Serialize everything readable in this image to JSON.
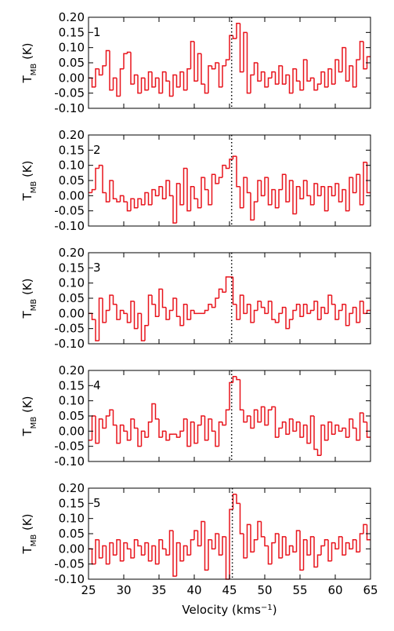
{
  "chart_data": [
    {
      "type": "step",
      "label": "1",
      "color": "#e8141c",
      "vline": 45.3,
      "ylabel": "T",
      "ylabel_sub": "MB",
      "ylabel_unit": " (K)",
      "xlim": [
        25,
        65
      ],
      "xticks": [
        25,
        30,
        35,
        40,
        45,
        50,
        55,
        60,
        65
      ],
      "ylim": [
        -0.1,
        0.2
      ],
      "yticks": [
        {
          "value": -0.1,
          "label": "-0.10"
        },
        {
          "value": -0.05,
          "label": "-0.05"
        },
        {
          "value": 0,
          "label": "0.00"
        },
        {
          "value": 0.05,
          "label": "0.05"
        },
        {
          "value": 0.1,
          "label": "0.10"
        },
        {
          "value": 0.15,
          "label": "0.15"
        },
        {
          "value": 0.2,
          "label": "0.20"
        }
      ],
      "x": [
        25.25,
        25.75,
        26.25,
        26.75,
        27.25,
        27.75,
        28.25,
        28.75,
        29.25,
        29.75,
        30.25,
        30.75,
        31.25,
        31.75,
        32.25,
        32.75,
        33.25,
        33.75,
        34.25,
        34.75,
        35.25,
        35.75,
        36.25,
        36.75,
        37.25,
        37.75,
        38.25,
        38.75,
        39.25,
        39.75,
        40.25,
        40.75,
        41.25,
        41.75,
        42.25,
        42.75,
        43.25,
        43.75,
        44.25,
        44.75,
        45.25,
        45.75,
        46.25,
        46.75,
        47.25,
        47.75,
        48.25,
        48.75,
        49.25,
        49.75,
        50.25,
        50.75,
        51.25,
        51.75,
        52.25,
        52.75,
        53.25,
        53.75,
        54.25,
        54.75,
        55.25,
        55.75,
        56.25,
        56.75,
        57.25,
        57.75,
        58.25,
        58.75,
        59.25,
        59.75,
        60.25,
        60.75,
        61.25,
        61.75,
        62.25,
        62.75,
        63.25,
        63.75,
        64.25,
        64.75
      ],
      "values": [
        0.0,
        -0.03,
        0.03,
        0.01,
        0.04,
        0.09,
        -0.04,
        0.0,
        -0.06,
        0.03,
        0.08,
        0.085,
        -0.02,
        0.01,
        -0.05,
        0.0,
        -0.04,
        0.02,
        -0.03,
        0.0,
        -0.05,
        0.02,
        -0.01,
        -0.06,
        0.01,
        -0.03,
        0.02,
        -0.04,
        0.03,
        0.12,
        -0.01,
        0.08,
        -0.02,
        -0.05,
        0.04,
        0.03,
        0.05,
        -0.03,
        0.04,
        0.06,
        0.14,
        0.13,
        0.18,
        0.02,
        0.15,
        -0.05,
        0.01,
        0.05,
        -0.01,
        0.02,
        -0.03,
        0.0,
        0.02,
        -0.02,
        0.04,
        -0.02,
        0.01,
        -0.05,
        0.03,
        -0.01,
        -0.04,
        0.06,
        -0.01,
        0.0,
        -0.04,
        -0.02,
        0.02,
        -0.03,
        0.03,
        -0.02,
        0.06,
        0.02,
        0.1,
        -0.01,
        0.04,
        -0.03,
        0.06,
        0.12,
        0.03,
        0.07
      ]
    },
    {
      "type": "step",
      "label": "2",
      "color": "#e8141c",
      "vline": 45.3,
      "ylabel": "T",
      "ylabel_sub": "MB",
      "ylabel_unit": " (K)",
      "xlim": [
        25,
        65
      ],
      "xticks": [
        25,
        30,
        35,
        40,
        45,
        50,
        55,
        60,
        65
      ],
      "ylim": [
        -0.1,
        0.2
      ],
      "yticks": [
        {
          "value": -0.1,
          "label": "-0.10"
        },
        {
          "value": -0.05,
          "label": "-0.05"
        },
        {
          "value": 0,
          "label": "0.00"
        },
        {
          "value": 0.05,
          "label": "0.05"
        },
        {
          "value": 0.1,
          "label": "0.10"
        },
        {
          "value": 0.15,
          "label": "0.15"
        },
        {
          "value": 0.2,
          "label": "0.20"
        }
      ],
      "x": [
        25.25,
        25.75,
        26.25,
        26.75,
        27.25,
        27.75,
        28.25,
        28.75,
        29.25,
        29.75,
        30.25,
        30.75,
        31.25,
        31.75,
        32.25,
        32.75,
        33.25,
        33.75,
        34.25,
        34.75,
        35.25,
        35.75,
        36.25,
        36.75,
        37.25,
        37.75,
        38.25,
        38.75,
        39.25,
        39.75,
        40.25,
        40.75,
        41.25,
        41.75,
        42.25,
        42.75,
        43.25,
        43.75,
        44.25,
        44.75,
        45.25,
        45.75,
        46.25,
        46.75,
        47.25,
        47.75,
        48.25,
        48.75,
        49.25,
        49.75,
        50.25,
        50.75,
        51.25,
        51.75,
        52.25,
        52.75,
        53.25,
        53.75,
        54.25,
        54.75,
        55.25,
        55.75,
        56.25,
        56.75,
        57.25,
        57.75,
        58.25,
        58.75,
        59.25,
        59.75,
        60.25,
        60.75,
        61.25,
        61.75,
        62.25,
        62.75,
        63.25,
        63.75,
        64.25,
        64.75
      ],
      "values": [
        0.01,
        0.02,
        0.09,
        0.1,
        0.01,
        -0.02,
        0.05,
        -0.01,
        -0.02,
        0.0,
        -0.02,
        -0.05,
        -0.01,
        -0.04,
        -0.01,
        -0.03,
        0.01,
        -0.03,
        0.02,
        0.0,
        0.03,
        -0.01,
        0.05,
        0.0,
        -0.09,
        0.04,
        -0.03,
        0.09,
        -0.05,
        0.03,
        -0.01,
        -0.04,
        0.06,
        0.02,
        -0.03,
        0.07,
        0.04,
        0.06,
        0.1,
        0.09,
        0.12,
        0.13,
        0.03,
        -0.04,
        0.06,
        0.01,
        -0.08,
        -0.02,
        0.05,
        0.0,
        0.06,
        -0.03,
        0.02,
        -0.04,
        0.02,
        0.07,
        -0.02,
        0.05,
        -0.06,
        0.03,
        -0.01,
        0.05,
        0.0,
        -0.03,
        0.04,
        0.0,
        0.03,
        -0.05,
        0.03,
        0.0,
        0.04,
        -0.02,
        0.02,
        -0.05,
        0.06,
        0.01,
        0.07,
        -0.03,
        0.11,
        0.01
      ]
    },
    {
      "type": "step",
      "label": "3",
      "color": "#e8141c",
      "vline": 45.3,
      "ylabel": "T",
      "ylabel_sub": "MB",
      "ylabel_unit": " (K)",
      "xlim": [
        25,
        65
      ],
      "xticks": [
        25,
        30,
        35,
        40,
        45,
        50,
        55,
        60,
        65
      ],
      "ylim": [
        -0.1,
        0.2
      ],
      "yticks": [
        {
          "value": -0.1,
          "label": "-0.10"
        },
        {
          "value": -0.05,
          "label": "-0.05"
        },
        {
          "value": 0,
          "label": "0.00"
        },
        {
          "value": 0.05,
          "label": "0.05"
        },
        {
          "value": 0.1,
          "label": "0.10"
        },
        {
          "value": 0.15,
          "label": "0.15"
        },
        {
          "value": 0.2,
          "label": "0.20"
        }
      ],
      "x": [
        25.25,
        25.75,
        26.25,
        26.75,
        27.25,
        27.75,
        28.25,
        28.75,
        29.25,
        29.75,
        30.25,
        30.75,
        31.25,
        31.75,
        32.25,
        32.75,
        33.25,
        33.75,
        34.25,
        34.75,
        35.25,
        35.75,
        36.25,
        36.75,
        37.25,
        37.75,
        38.25,
        38.75,
        39.25,
        39.75,
        40.25,
        40.75,
        41.25,
        41.75,
        42.25,
        42.75,
        43.25,
        43.75,
        44.25,
        44.75,
        45.25,
        45.75,
        46.25,
        46.75,
        47.25,
        47.75,
        48.25,
        48.75,
        49.25,
        49.75,
        50.25,
        50.75,
        51.25,
        51.75,
        52.25,
        52.75,
        53.25,
        53.75,
        54.25,
        54.75,
        55.25,
        55.75,
        56.25,
        56.75,
        57.25,
        57.75,
        58.25,
        58.75,
        59.25,
        59.75,
        60.25,
        60.75,
        61.25,
        61.75,
        62.25,
        62.75,
        63.25,
        63.75,
        64.25,
        64.75
      ],
      "values": [
        0.0,
        -0.02,
        -0.09,
        0.05,
        -0.03,
        0.01,
        0.06,
        0.03,
        -0.02,
        0.01,
        0.0,
        -0.03,
        0.04,
        -0.05,
        0.0,
        -0.09,
        -0.04,
        0.06,
        0.03,
        -0.01,
        0.08,
        0.02,
        -0.02,
        0.01,
        0.05,
        -0.01,
        -0.04,
        0.03,
        -0.02,
        0.01,
        0.0,
        0.0,
        0.0,
        0.01,
        0.03,
        0.02,
        0.05,
        0.08,
        0.07,
        0.12,
        0.12,
        0.03,
        -0.02,
        0.06,
        0.0,
        0.03,
        -0.03,
        0.01,
        0.04,
        0.02,
        0.0,
        0.04,
        -0.02,
        -0.03,
        0.0,
        0.02,
        -0.05,
        -0.02,
        0.01,
        0.03,
        -0.01,
        0.03,
        0.0,
        0.01,
        0.04,
        -0.02,
        0.02,
        0.0,
        0.06,
        0.03,
        -0.02,
        0.01,
        0.03,
        -0.04,
        0.0,
        0.02,
        -0.03,
        0.04,
        0.0,
        0.01
      ]
    },
    {
      "type": "step",
      "label": "4",
      "color": "#e8141c",
      "vline": 45.3,
      "ylabel": "T",
      "ylabel_sub": "MB",
      "ylabel_unit": " (K)",
      "xlim": [
        25,
        65
      ],
      "xticks": [
        25,
        30,
        35,
        40,
        45,
        50,
        55,
        60,
        65
      ],
      "ylim": [
        -0.1,
        0.2
      ],
      "yticks": [
        {
          "value": -0.1,
          "label": "-0.10"
        },
        {
          "value": -0.05,
          "label": "-0.05"
        },
        {
          "value": 0,
          "label": "0.00"
        },
        {
          "value": 0.05,
          "label": "0.05"
        },
        {
          "value": 0.1,
          "label": "0.10"
        },
        {
          "value": 0.15,
          "label": "0.15"
        },
        {
          "value": 0.2,
          "label": "0.20"
        }
      ],
      "x": [
        25.25,
        25.75,
        26.25,
        26.75,
        27.25,
        27.75,
        28.25,
        28.75,
        29.25,
        29.75,
        30.25,
        30.75,
        31.25,
        31.75,
        32.25,
        32.75,
        33.25,
        33.75,
        34.25,
        34.75,
        35.25,
        35.75,
        36.25,
        36.75,
        37.25,
        37.75,
        38.25,
        38.75,
        39.25,
        39.75,
        40.25,
        40.75,
        41.25,
        41.75,
        42.25,
        42.75,
        43.25,
        43.75,
        44.25,
        44.75,
        45.25,
        45.75,
        46.25,
        46.75,
        47.25,
        47.75,
        48.25,
        48.75,
        49.25,
        49.75,
        50.25,
        50.75,
        51.25,
        51.75,
        52.25,
        52.75,
        53.25,
        53.75,
        54.25,
        54.75,
        55.25,
        55.75,
        56.25,
        56.75,
        57.25,
        57.75,
        58.25,
        58.75,
        59.25,
        59.75,
        60.25,
        60.75,
        61.25,
        61.75,
        62.25,
        62.75,
        63.25,
        63.75,
        64.25,
        64.75
      ],
      "values": [
        -0.03,
        0.05,
        -0.04,
        0.04,
        0.01,
        0.05,
        0.07,
        0.02,
        -0.04,
        0.02,
        0.0,
        -0.03,
        0.04,
        0.01,
        -0.05,
        0.0,
        -0.02,
        0.03,
        0.09,
        0.04,
        -0.02,
        0.0,
        -0.03,
        -0.01,
        -0.01,
        -0.02,
        0.0,
        0.04,
        -0.05,
        0.03,
        -0.04,
        0.02,
        0.05,
        -0.03,
        0.04,
        0.0,
        -0.05,
        0.03,
        0.02,
        0.07,
        0.16,
        0.18,
        0.17,
        0.07,
        0.03,
        0.05,
        0.01,
        0.07,
        0.03,
        0.08,
        0.02,
        0.07,
        0.08,
        -0.02,
        0.01,
        0.03,
        -0.01,
        0.04,
        0.0,
        0.03,
        -0.02,
        0.02,
        -0.04,
        0.05,
        -0.06,
        -0.08,
        0.02,
        -0.03,
        0.03,
        -0.01,
        0.02,
        0.0,
        0.01,
        -0.02,
        0.04,
        0.01,
        -0.03,
        0.06,
        0.03,
        -0.02
      ]
    },
    {
      "type": "step",
      "label": "5",
      "color": "#e8141c",
      "vline": 45.4,
      "ylabel": "T",
      "ylabel_sub": "MB",
      "ylabel_unit": " (K)",
      "xlabel": "Velocity (kms",
      "xlabel_sup": "−1",
      "xlabel_end": ")",
      "xtick_labels": true,
      "xlim": [
        25,
        65
      ],
      "xticks": [
        25,
        30,
        35,
        40,
        45,
        50,
        55,
        60,
        65
      ],
      "ylim": [
        -0.1,
        0.2
      ],
      "yticks": [
        {
          "value": -0.1,
          "label": "-0.10"
        },
        {
          "value": -0.05,
          "label": "-0.05"
        },
        {
          "value": 0,
          "label": "0.00"
        },
        {
          "value": 0.05,
          "label": "0.05"
        },
        {
          "value": 0.1,
          "label": "0.10"
        },
        {
          "value": 0.15,
          "label": "0.15"
        },
        {
          "value": 0.2,
          "label": "0.20"
        }
      ],
      "x": [
        25.25,
        25.75,
        26.25,
        26.75,
        27.25,
        27.75,
        28.25,
        28.75,
        29.25,
        29.75,
        30.25,
        30.75,
        31.25,
        31.75,
        32.25,
        32.75,
        33.25,
        33.75,
        34.25,
        34.75,
        35.25,
        35.75,
        36.25,
        36.75,
        37.25,
        37.75,
        38.25,
        38.75,
        39.25,
        39.75,
        40.25,
        40.75,
        41.25,
        41.75,
        42.25,
        42.75,
        43.25,
        43.75,
        44.25,
        44.75,
        45.25,
        45.75,
        46.25,
        46.75,
        47.25,
        47.75,
        48.25,
        48.75,
        49.25,
        49.75,
        50.25,
        50.75,
        51.25,
        51.75,
        52.25,
        52.75,
        53.25,
        53.75,
        54.25,
        54.75,
        55.25,
        55.75,
        56.25,
        56.75,
        57.25,
        57.75,
        58.25,
        58.75,
        59.25,
        59.75,
        60.25,
        60.75,
        61.25,
        61.75,
        62.25,
        62.75,
        63.25,
        63.75,
        64.25,
        64.75
      ],
      "values": [
        0.0,
        -0.05,
        0.03,
        -0.03,
        0.01,
        -0.05,
        0.02,
        -0.02,
        0.03,
        -0.04,
        0.02,
        0.0,
        -0.03,
        0.03,
        0.01,
        -0.02,
        0.02,
        -0.04,
        0.01,
        -0.05,
        0.03,
        0.0,
        -0.02,
        0.06,
        -0.09,
        0.02,
        -0.04,
        0.01,
        -0.02,
        0.03,
        0.06,
        0.01,
        0.09,
        -0.07,
        0.03,
        0.0,
        0.05,
        -0.02,
        0.04,
        -0.1,
        0.13,
        0.18,
        0.15,
        0.05,
        -0.03,
        0.08,
        -0.01,
        0.03,
        0.09,
        0.04,
        0.01,
        -0.05,
        0.02,
        0.05,
        -0.03,
        0.04,
        -0.02,
        0.01,
        -0.01,
        0.06,
        -0.07,
        0.03,
        -0.02,
        0.04,
        -0.06,
        -0.02,
        0.01,
        0.03,
        -0.04,
        0.02,
        0.0,
        0.04,
        -0.02,
        0.02,
        0.0,
        0.03,
        -0.01,
        0.05,
        0.08,
        0.03
      ]
    }
  ]
}
